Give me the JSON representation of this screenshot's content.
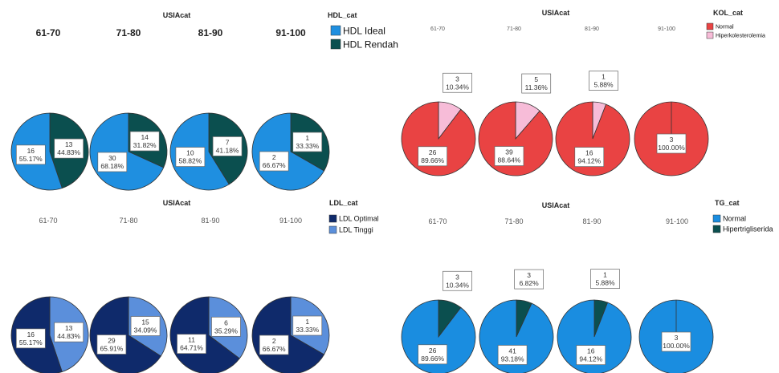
{
  "chart_data": [
    {
      "type": "pie",
      "facet_title": "USIAcat",
      "legend_title": "HDL_cat",
      "legend_placement": "top-right",
      "facets": [
        "61-70",
        "71-80",
        "81-90",
        "91-100"
      ],
      "series": [
        {
          "name": "HDL Ideal",
          "color": "#1f8fe0",
          "values": [
            16,
            30,
            10,
            2
          ],
          "labels": [
            "55.17%",
            "68.18%",
            "58.82%",
            "66.67%"
          ]
        },
        {
          "name": "HDL Rendah",
          "color": "#0b4f4f",
          "values": [
            13,
            14,
            7,
            1
          ],
          "labels": [
            "44.83%",
            "31.82%",
            "41.18%",
            "33.33%"
          ]
        }
      ]
    },
    {
      "type": "pie",
      "facet_title": "USIAcat",
      "legend_title": "KOL_cat",
      "legend_placement": "top-right",
      "facets": [
        "61-70",
        "71-80",
        "81-90",
        "91-100"
      ],
      "series": [
        {
          "name": "Normal",
          "color": "#e94343",
          "values": [
            26,
            39,
            16,
            3
          ],
          "labels": [
            "89.66%",
            "88.64%",
            "94.12%",
            "100.00%"
          ]
        },
        {
          "name": "Hiperkolesterolemia",
          "color": "#f7bcd8",
          "values": [
            3,
            5,
            1,
            0
          ],
          "labels": [
            "10.34%",
            "11.36%",
            "5.88%",
            ""
          ]
        }
      ]
    },
    {
      "type": "pie",
      "facet_title": "USIAcat",
      "legend_title": "LDL_cat",
      "legend_placement": "top-right",
      "facets": [
        "61-70",
        "71-80",
        "81-90",
        "91-100"
      ],
      "series": [
        {
          "name": "LDL Optimal",
          "color": "#0f2a6b",
          "values": [
            16,
            29,
            11,
            2
          ],
          "labels": [
            "55.17%",
            "65.91%",
            "64.71%",
            "66.67%"
          ]
        },
        {
          "name": "LDL Tinggi",
          "color": "#5b8fdb",
          "values": [
            13,
            15,
            6,
            1
          ],
          "labels": [
            "44.83%",
            "34.09%",
            "35.29%",
            "33.33%"
          ]
        }
      ]
    },
    {
      "type": "pie",
      "facet_title": "USIAcat",
      "legend_title": "TG_cat",
      "legend_placement": "top-right",
      "facets": [
        "61-70",
        "71-80",
        "81-90",
        "91-100"
      ],
      "series": [
        {
          "name": "Normal",
          "color": "#1a8de0",
          "values": [
            26,
            41,
            16,
            3
          ],
          "labels": [
            "89.66%",
            "93.18%",
            "94.12%",
            "100.00%"
          ]
        },
        {
          "name": "Hipertrigliserida",
          "color": "#0b4f4f",
          "values": [
            3,
            3,
            1,
            0
          ],
          "labels": [
            "10.34%",
            "6.82%",
            "5.88%",
            ""
          ]
        }
      ]
    }
  ]
}
